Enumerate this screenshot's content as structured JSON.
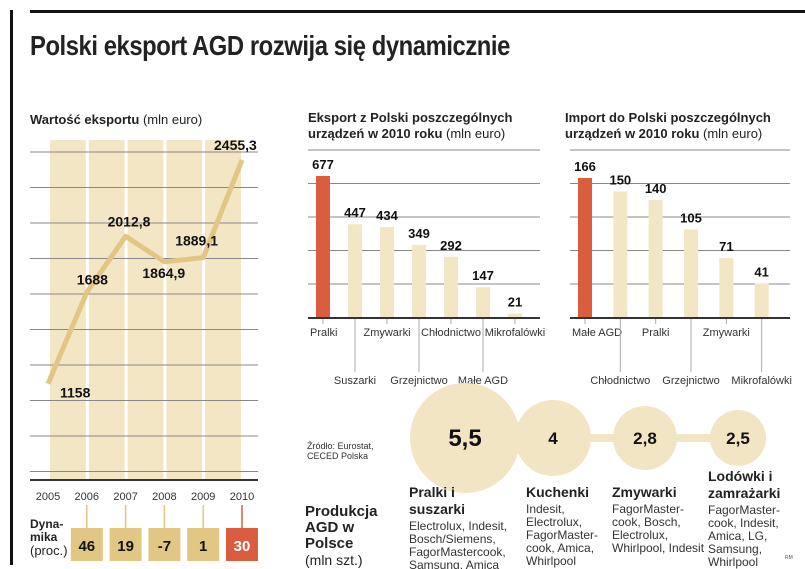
{
  "title": "Polski eksport AGD rozwija się dynamicznie",
  "source": "Źródło: Eurostat, CECED Polska",
  "credit": "RM",
  "colors": {
    "beige": "#f3e6c5",
    "gold": "#e2c684",
    "red": "#d95d3e",
    "grid": "#888888",
    "bubble": "#f2e5c3"
  },
  "chart_data": [
    {
      "type": "line",
      "title": "Wartość eksportu",
      "unit": "(mln euro)",
      "x": [
        "2005",
        "2006",
        "2007",
        "2008",
        "2009",
        "2010"
      ],
      "values": [
        1158,
        1688,
        2012.8,
        1864.9,
        1889.1,
        2455.3
      ],
      "labels": [
        "1158",
        "1688",
        "2012,8",
        "1864,9",
        "1889,1",
        "2455,3"
      ],
      "ylim": [
        600,
        2600
      ],
      "dynamics": {
        "label": "Dyna-mika",
        "unit": "(proc.)",
        "values": [
          "46",
          "19",
          "-7",
          "1",
          "30"
        ]
      }
    },
    {
      "type": "bar",
      "title": "Eksport z Polski poszczególnych urządzeń w 2010 roku",
      "unit": "(mln euro)",
      "categories": [
        "Pralki",
        "Suszarki",
        "Zmywarki",
        "Grzejnictwo",
        "Chłodnictwo",
        "Małe AGD",
        "Mikrofalówki"
      ],
      "values": [
        677,
        447,
        434,
        349,
        292,
        147,
        21
      ]
    },
    {
      "type": "bar",
      "title": "Import do Polski poszczególnych urządzeń w 2010 roku",
      "unit": "(mln euro)",
      "categories": [
        "Małe AGD",
        "Chłodnictwo",
        "Pralki",
        "Grzejnictwo",
        "Zmywarki",
        "Mikrofalówki"
      ],
      "values": [
        166,
        150,
        140,
        105,
        71,
        41
      ]
    }
  ],
  "production": {
    "title": "Produkcja AGD w Polsce",
    "unit": "(mln szt.)",
    "items": [
      {
        "value": "5,5",
        "name": "Pralki i suszarki",
        "makers": "Electrolux, Indesit, Bosch/Siemens, FagorMastercook, Samsung, Amica"
      },
      {
        "value": "4",
        "name": "Kuchenki",
        "makers": "Indesit, Electrolux, FagorMaster-cook, Amica, Whirlpool"
      },
      {
        "value": "2,8",
        "name": "Zmywarki",
        "makers": "FagorMaster-cook, Bosch, Electrolux, Whirlpool, Indesit"
      },
      {
        "value": "2,5",
        "name": "Lodówki i zamrażarki",
        "makers": "FagorMaster-cook, Indesit, Amica, LG, Samsung, Whirlpool"
      }
    ]
  }
}
